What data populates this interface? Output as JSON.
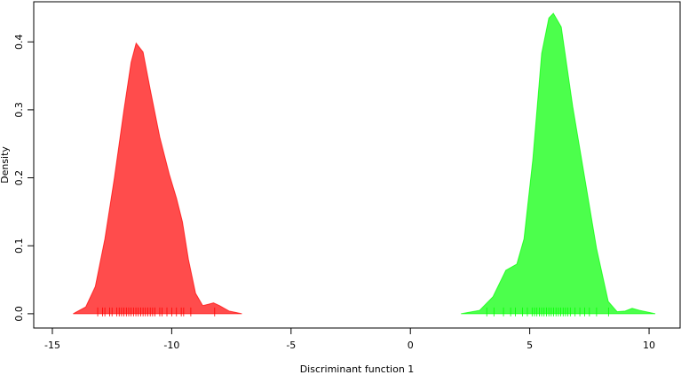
{
  "chart_data": {
    "type": "density",
    "xlabel": "Discriminant function 1",
    "ylabel": "Density",
    "xlim": [
      -15.78,
      11.3
    ],
    "ylim": [
      -0.021,
      0.459
    ],
    "xticks": [
      -15,
      -10,
      -5,
      0,
      5,
      10
    ],
    "yticks": [
      {
        "value": 0,
        "label": "0.0"
      },
      0.1,
      0.2,
      0.3,
      0.4
    ],
    "series": [
      {
        "color": "#ff0000",
        "x": [
          -14.13,
          -13.6,
          -13.2,
          -12.8,
          -12.4,
          -12.0,
          -11.7,
          -11.49,
          -11.2,
          -10.9,
          -10.5,
          -10.1,
          -9.8,
          -9.55,
          -9.3,
          -9.0,
          -8.7,
          -8.45,
          -8.25,
          -8.0,
          -7.6,
          -7.06
        ],
        "values": [
          0,
          0.01,
          0.04,
          0.11,
          0.2,
          0.3,
          0.37,
          0.398,
          0.385,
          0.33,
          0.26,
          0.205,
          0.17,
          0.135,
          0.08,
          0.03,
          0.012,
          0.014,
          0.016,
          0.012,
          0.004,
          0
        ],
        "rug": [
          -13.1,
          -12.9,
          -12.8,
          -12.6,
          -12.5,
          -12.3,
          -12.2,
          -12.1,
          -12.0,
          -11.9,
          -11.8,
          -11.7,
          -11.6,
          -11.5,
          -11.4,
          -11.3,
          -11.2,
          -11.1,
          -11.0,
          -10.9,
          -10.8,
          -10.7,
          -10.5,
          -10.4,
          -10.2,
          -10.0,
          -9.8,
          -9.6,
          -9.5,
          -9.2,
          -8.2
        ]
      },
      {
        "color": "#00ff00",
        "x": [
          2.12,
          2.9,
          3.46,
          4.0,
          4.46,
          4.76,
          5.13,
          5.5,
          5.8,
          5.99,
          6.32,
          6.8,
          7.36,
          7.8,
          8.29,
          8.66,
          9.0,
          9.29,
          9.6,
          10.26
        ],
        "values": [
          0,
          0.005,
          0.025,
          0.064,
          0.073,
          0.11,
          0.227,
          0.383,
          0.435,
          0.442,
          0.422,
          0.305,
          0.188,
          0.096,
          0.018,
          0.003,
          0.004,
          0.008,
          0.005,
          0
        ],
        "rug": [
          3.2,
          3.5,
          3.9,
          4.2,
          4.4,
          4.7,
          4.9,
          5.1,
          5.2,
          5.3,
          5.4,
          5.5,
          5.6,
          5.7,
          5.8,
          5.9,
          6.0,
          6.1,
          6.2,
          6.3,
          6.4,
          6.5,
          6.6,
          6.7,
          6.9,
          7.1,
          7.3,
          7.5,
          7.8,
          8.3
        ]
      }
    ]
  }
}
